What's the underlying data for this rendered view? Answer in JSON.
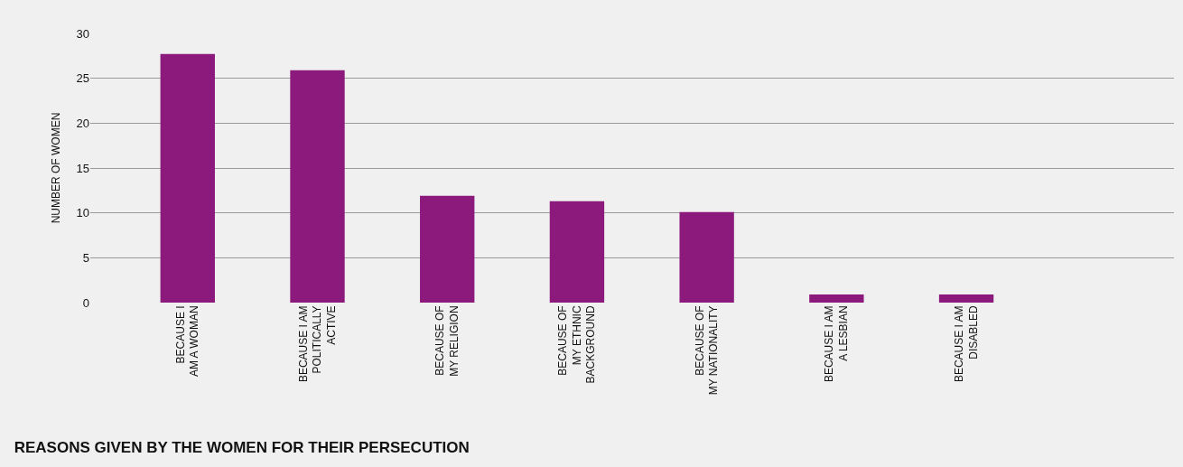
{
  "chart_data": {
    "type": "bar",
    "title": "REASONS GIVEN BY THE WOMEN FOR THEIR PERSECUTION",
    "ylabel": "NUMBER OF WOMEN",
    "categories": [
      "BECAUSE I\nAM A WOMAN",
      "BECAUSE I AM\nPOLITICALLY\nACTIVE",
      "BECAUSE OF\nMY RELIGION",
      "BECAUSE OF\nMY ETHNIC\nBACKGROUND",
      "BECAUSE OF\nMY NATIONALITY",
      "BECAUSE I AM\nA LESBIAN",
      "BECAUSE I AM\nDISABLED"
    ],
    "values": [
      27.7,
      25.9,
      11.9,
      11.3,
      10.1,
      0.9,
      0.9
    ],
    "color": "#8b1a7c",
    "ylim": [
      0,
      30
    ],
    "yticks": [
      0,
      5,
      10,
      15,
      20,
      25,
      30
    ],
    "grid": "y"
  }
}
